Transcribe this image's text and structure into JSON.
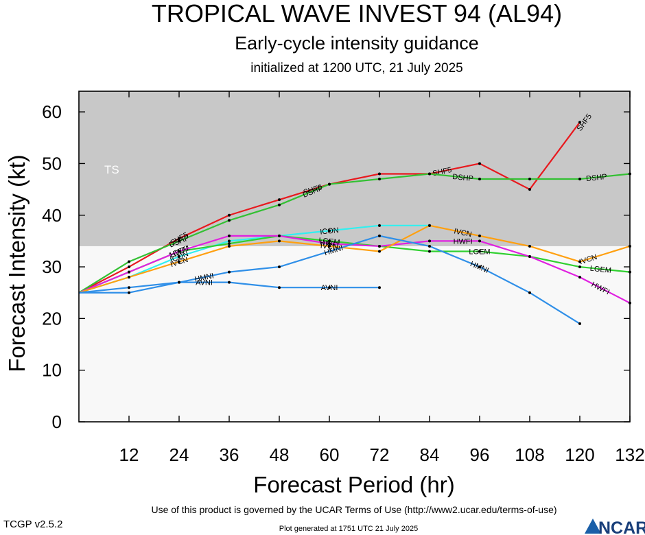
{
  "header": {
    "title": "TROPICAL WAVE INVEST 94 (AL94)",
    "subtitle": "Early-cycle intensity guidance",
    "init": "initialized at 1200 UTC, 21 July 2025"
  },
  "footer": {
    "terms": "Use of this product is governed by the UCAR Terms of Use (http://www2.ucar.edu/terms-of-use)",
    "generated": "Plot generated at 1751 UTC   21 July 2025",
    "version": "TCGP v2.5.2",
    "logo_text": "NCAR"
  },
  "colors": {
    "shade_ts": "#c8c8c8",
    "shade_bg": "#f8f8f8"
  },
  "chart_data": {
    "type": "line",
    "xlabel": "Forecast Period (hr)",
    "ylabel": "Forecast Intensity (kt)",
    "xlim": [
      0,
      132
    ],
    "ylim": [
      0,
      64
    ],
    "xticks": [
      12,
      24,
      36,
      48,
      60,
      72,
      84,
      96,
      108,
      120,
      132
    ],
    "yticks": [
      0,
      10,
      20,
      30,
      40,
      50,
      60
    ],
    "bands": [
      {
        "label": "TS",
        "from": 34,
        "to": 64
      }
    ],
    "series": [
      {
        "name": "SHF5",
        "color": "#e8191e",
        "labels_at": [
          24,
          56,
          87,
          121
        ],
        "x": [
          0,
          12,
          24,
          36,
          48,
          60,
          72,
          84,
          96,
          108,
          120
        ],
        "y": [
          25,
          30,
          35.5,
          40,
          43,
          46,
          48,
          48,
          50,
          45,
          58
        ]
      },
      {
        "name": "DSHP",
        "color": "#33c033",
        "labels_at": [
          24,
          56,
          92,
          124
        ],
        "x": [
          0,
          12,
          24,
          36,
          48,
          60,
          72,
          84,
          96,
          108,
          120,
          132
        ],
        "y": [
          25,
          31,
          35,
          39,
          42,
          46,
          47,
          48,
          47,
          47,
          47,
          48
        ]
      },
      {
        "name": "ICON",
        "color": "#30f0f0",
        "labels_at": [
          24,
          60
        ],
        "x": [
          0,
          12,
          24,
          36,
          48,
          60,
          72,
          84
        ],
        "y": [
          25,
          28,
          32,
          35,
          36,
          37,
          38,
          38
        ]
      },
      {
        "name": "LGEM",
        "color": "#30d030",
        "labels_at": [
          24,
          60,
          96,
          125
        ],
        "x": [
          0,
          12,
          24,
          36,
          48,
          60,
          72,
          84,
          96,
          108,
          120,
          132
        ],
        "y": [
          25,
          29,
          33,
          34.5,
          36,
          35,
          34,
          33,
          33,
          32,
          30,
          29
        ]
      },
      {
        "name": "HWFI",
        "color": "#e020e0",
        "labels_at": [
          24,
          60,
          92,
          125
        ],
        "x": [
          0,
          12,
          24,
          36,
          48,
          60,
          72,
          84,
          96,
          108,
          120,
          132
        ],
        "y": [
          25,
          29,
          33,
          36,
          36,
          34.5,
          34,
          35,
          35,
          32,
          28,
          23
        ]
      },
      {
        "name": "IVCN",
        "color": "#ffa010",
        "labels_at": [
          24,
          60,
          92,
          122
        ],
        "x": [
          0,
          12,
          24,
          36,
          48,
          60,
          72,
          84,
          96,
          108,
          120,
          132
        ],
        "y": [
          25,
          28,
          31,
          34,
          35,
          34,
          33,
          38,
          36,
          34,
          31,
          34
        ]
      },
      {
        "name": "HMNI",
        "color": "#2f8fe8",
        "labels_at": [
          30,
          61,
          96
        ],
        "x": [
          0,
          12,
          24,
          36,
          48,
          72,
          84,
          96,
          108,
          120
        ],
        "y": [
          25,
          26,
          27,
          29,
          30,
          36,
          34,
          30,
          25,
          19
        ]
      },
      {
        "name": "AVNI",
        "color": "#2f8fe8",
        "labels_at": [
          30,
          60
        ],
        "x": [
          0,
          12,
          24,
          36,
          48,
          60,
          72
        ],
        "y": [
          25,
          25,
          27,
          27,
          26,
          26,
          26
        ]
      }
    ]
  }
}
